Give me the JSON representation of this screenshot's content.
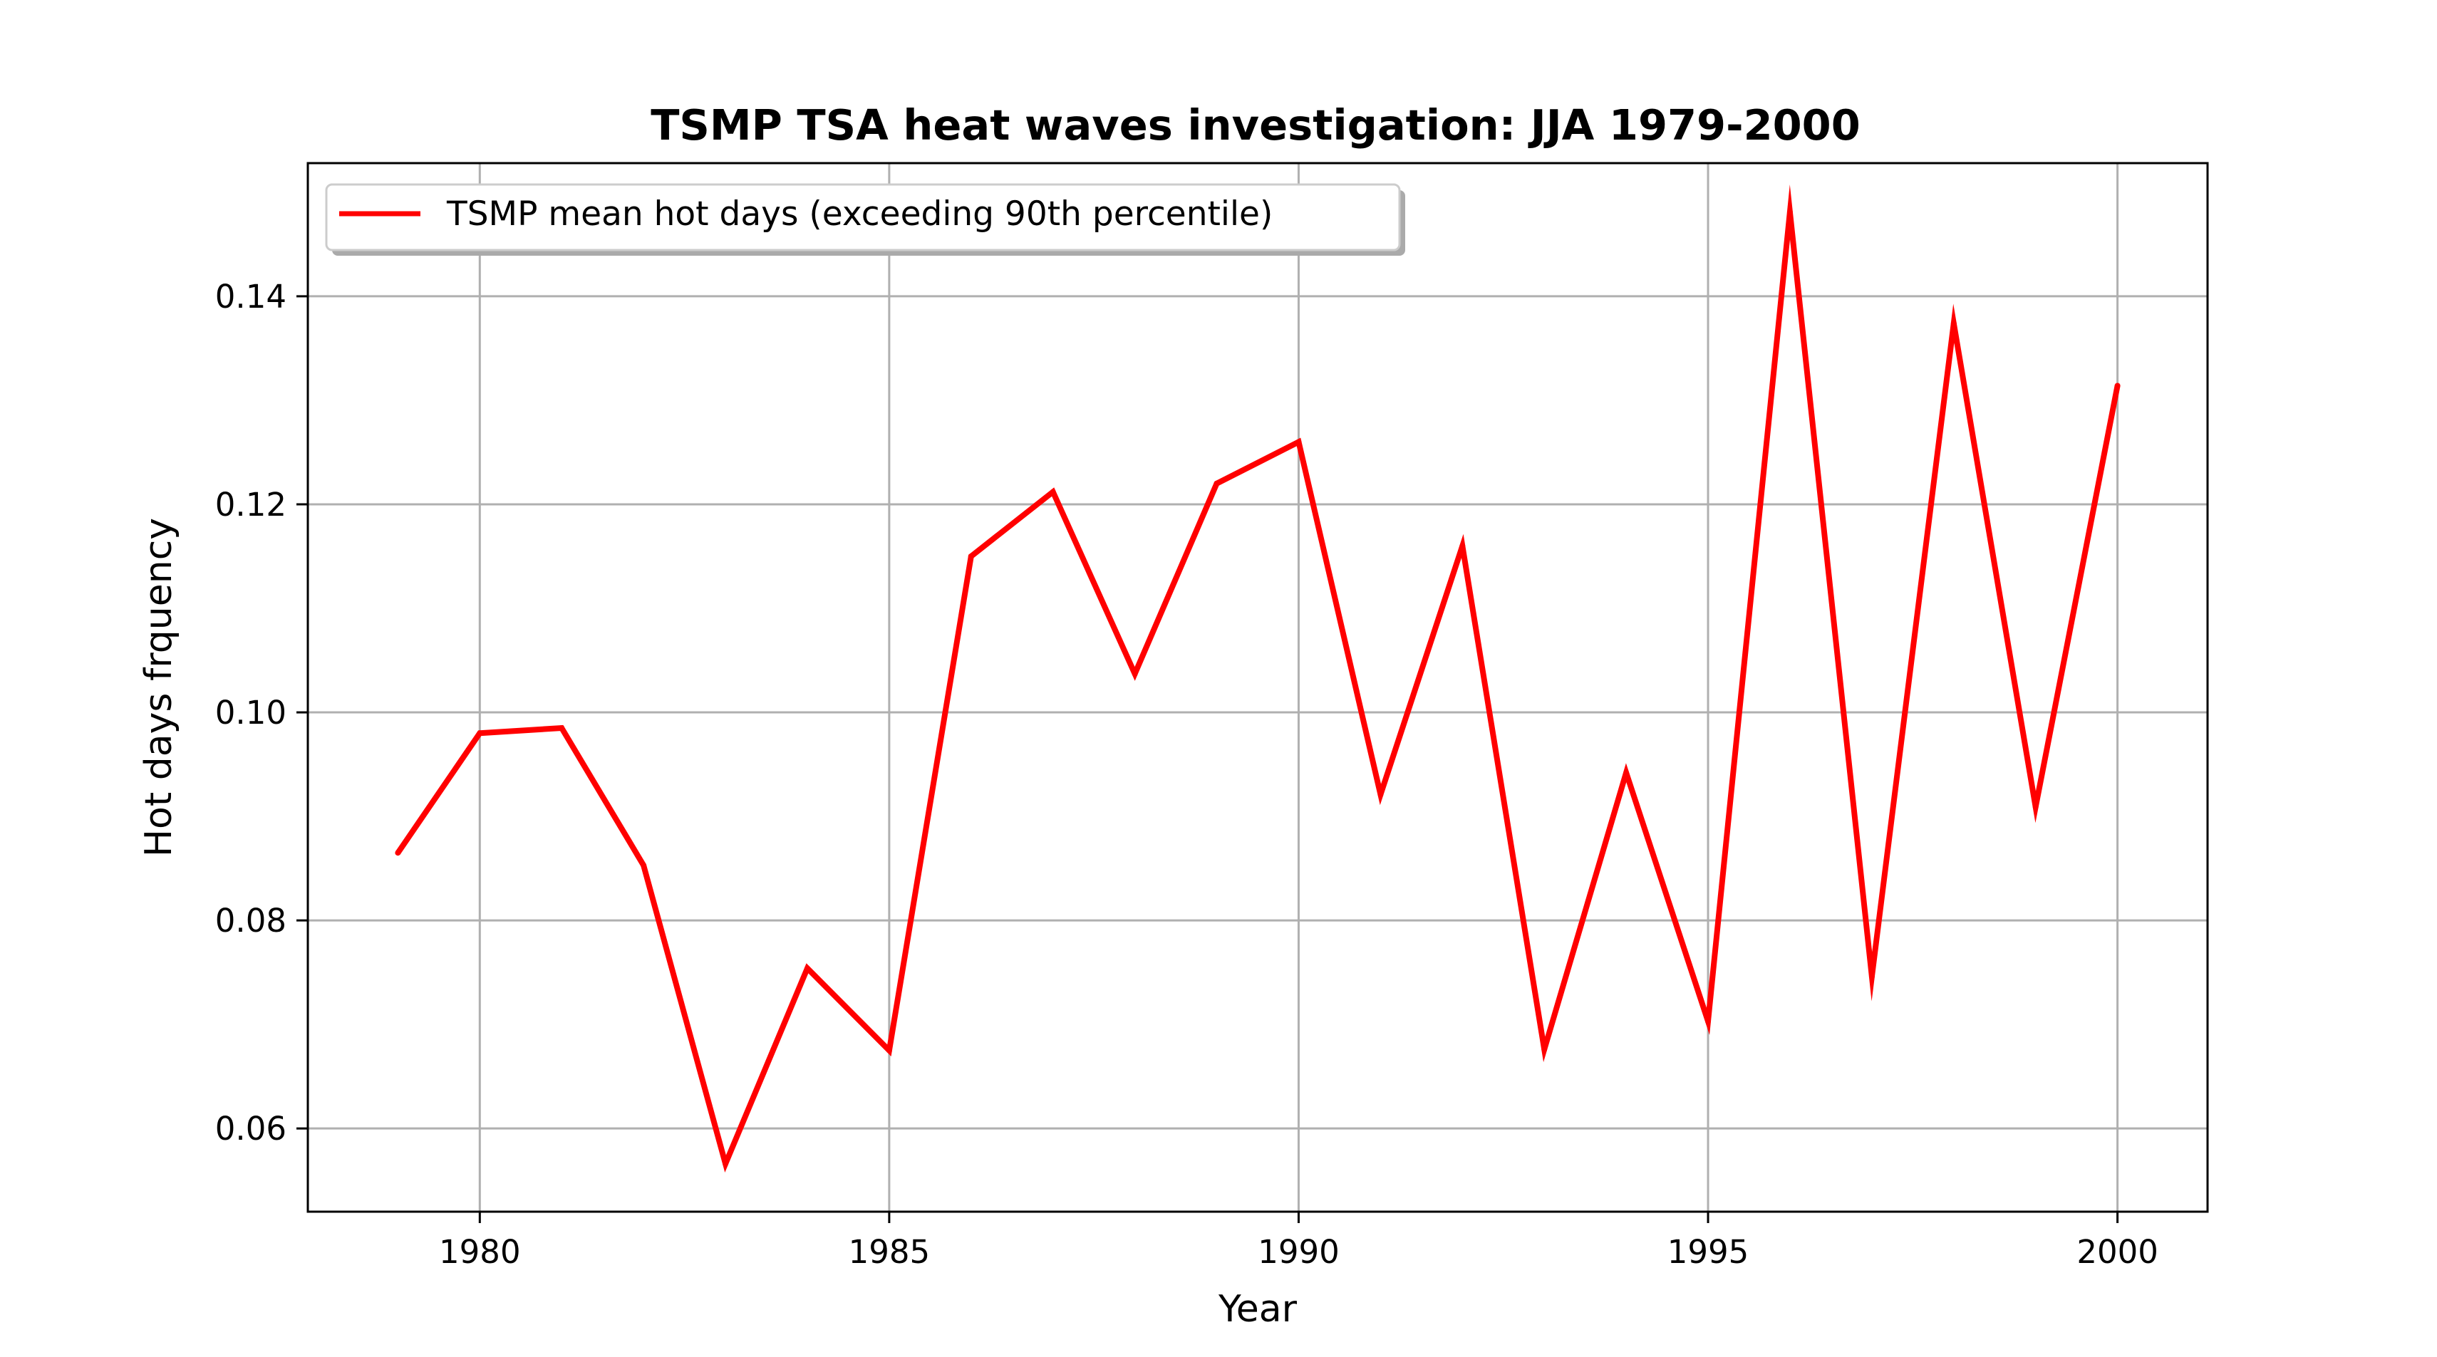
{
  "chart_data": {
    "type": "line",
    "title": "TSMP TSA heat waves investigation: JJA 1979-2000",
    "xlabel": "Year",
    "ylabel": "Hot days frquency",
    "xlim": [
      1977.9,
      2001.1
    ],
    "ylim": [
      0.052,
      0.1528
    ],
    "grid": true,
    "legend_placement": "upper-left",
    "x_ticks": [
      1980,
      1985,
      1990,
      1995,
      2000
    ],
    "x_tick_labels": [
      "1980",
      "1985",
      "1990",
      "1995",
      "2000"
    ],
    "y_ticks": [
      0.06,
      0.08,
      0.1,
      0.12,
      0.14
    ],
    "y_tick_labels": [
      "0.06",
      "0.08",
      "0.10",
      "0.12",
      "0.14"
    ],
    "x": [
      1979,
      1980,
      1981,
      1982,
      1983,
      1984,
      1985,
      1986,
      1987,
      1988,
      1989,
      1990,
      1991,
      1992,
      1993,
      1994,
      1995,
      1996,
      1997,
      1998,
      1999,
      2000
    ],
    "series": [
      {
        "name": "TSMP mean hot days (exceeding 90th percentile)",
        "color": "#ff0000",
        "values": [
          0.0865,
          0.098,
          0.0985,
          0.0853,
          0.0566,
          0.0754,
          0.0675,
          0.115,
          0.1212,
          0.1037,
          0.122,
          0.126,
          0.0921,
          0.116,
          0.0676,
          0.0942,
          0.0703,
          0.1481,
          0.0746,
          0.1374,
          0.0909,
          0.1314
        ]
      }
    ]
  }
}
